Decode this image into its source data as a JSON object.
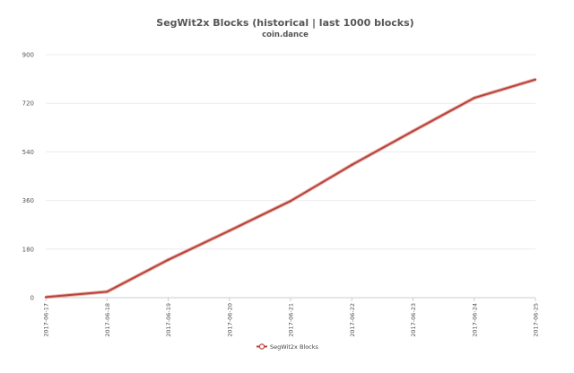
{
  "chart_data": {
    "type": "line",
    "title": "SegWit2x Blocks (historical | last 1000 blocks)",
    "subtitle": "coin.dance",
    "xlabel": "",
    "ylabel": "",
    "categories": [
      "2017-06-17",
      "2017-06-18",
      "2017-06-19",
      "2017-06-20",
      "2017-06-21",
      "2017-06-22",
      "2017-06-23",
      "2017-06-24",
      "2017-06-25"
    ],
    "y_ticks": [
      "0",
      "180",
      "360",
      "540",
      "720",
      "900"
    ],
    "ylim": [
      0,
      900
    ],
    "grid": true,
    "legend_position": "bottom",
    "series": [
      {
        "name": "SegWit2x Blocks",
        "color": "#b8433a",
        "values": [
          2,
          22,
          140,
          248,
          358,
          492,
          617,
          740,
          808
        ]
      }
    ]
  }
}
